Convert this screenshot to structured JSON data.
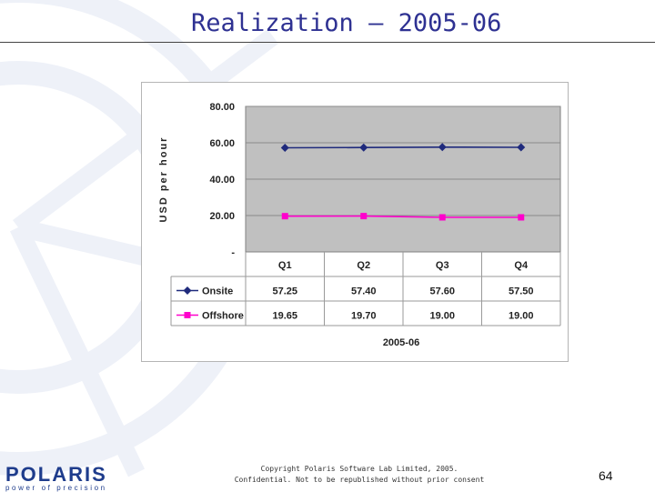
{
  "slide": {
    "title": "Realization – 2005-06",
    "footer_line1": "Copyright Polaris Software Lab Limited, 2005.",
    "footer_line2": "Confidential. Not to be republished without prior consent",
    "page_number": "64",
    "logo_word": "POLARIS",
    "logo_tagline": "power of precision",
    "accent_color": "#2e3192"
  },
  "chart_data": {
    "type": "line",
    "title": "",
    "xlabel": "2005-06",
    "ylabel": "USD per hour",
    "categories": [
      "Q1",
      "Q2",
      "Q3",
      "Q4"
    ],
    "ylim": [
      0,
      80
    ],
    "yticks": [
      0,
      20,
      40,
      60,
      80
    ],
    "ytick_labels": [
      "-",
      "20.00",
      "40.00",
      "60.00",
      "80.00"
    ],
    "grid": true,
    "legend": "data-table",
    "series": [
      {
        "name": "Onsite",
        "values": [
          57.25,
          57.4,
          57.6,
          57.5
        ],
        "labels": [
          "57.25",
          "57.40",
          "57.60",
          "57.50"
        ],
        "color": "#1f2a7c",
        "marker": "diamond"
      },
      {
        "name": "Offshore",
        "values": [
          19.65,
          19.7,
          19.0,
          19.0
        ],
        "labels": [
          "19.65",
          "19.70",
          "19.00",
          "19.00"
        ],
        "color": "#ff00cc",
        "marker": "square"
      }
    ]
  }
}
